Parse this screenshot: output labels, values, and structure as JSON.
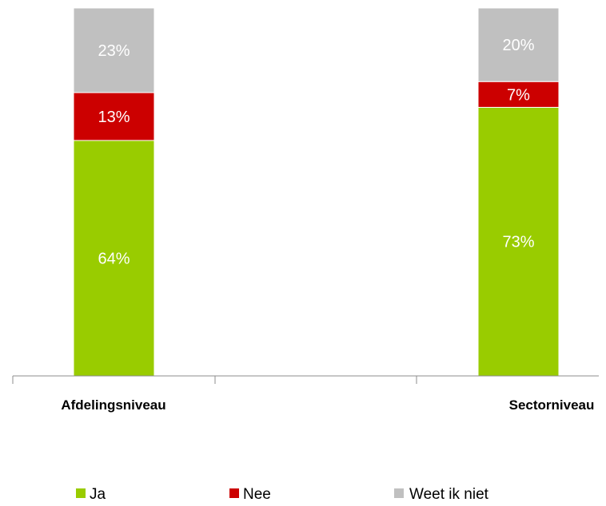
{
  "chart_data": {
    "type": "bar",
    "stacked": true,
    "categories": [
      "Afdelingsniveau",
      "Sectorniveau"
    ],
    "series": [
      {
        "name": "Ja",
        "values": [
          64,
          73
        ],
        "labels": [
          "64%",
          "73%"
        ],
        "color": "#99CC00"
      },
      {
        "name": "Nee",
        "values": [
          13,
          7
        ],
        "labels": [
          "13%",
          "7%"
        ],
        "color": "#CC0000"
      },
      {
        "name": "Weet ik niet",
        "values": [
          23,
          20
        ],
        "labels": [
          "23%",
          "20%"
        ],
        "color": "#C0C0C0"
      }
    ],
    "ylim": [
      0,
      100
    ],
    "grid": false,
    "legend_position": "bottom"
  }
}
